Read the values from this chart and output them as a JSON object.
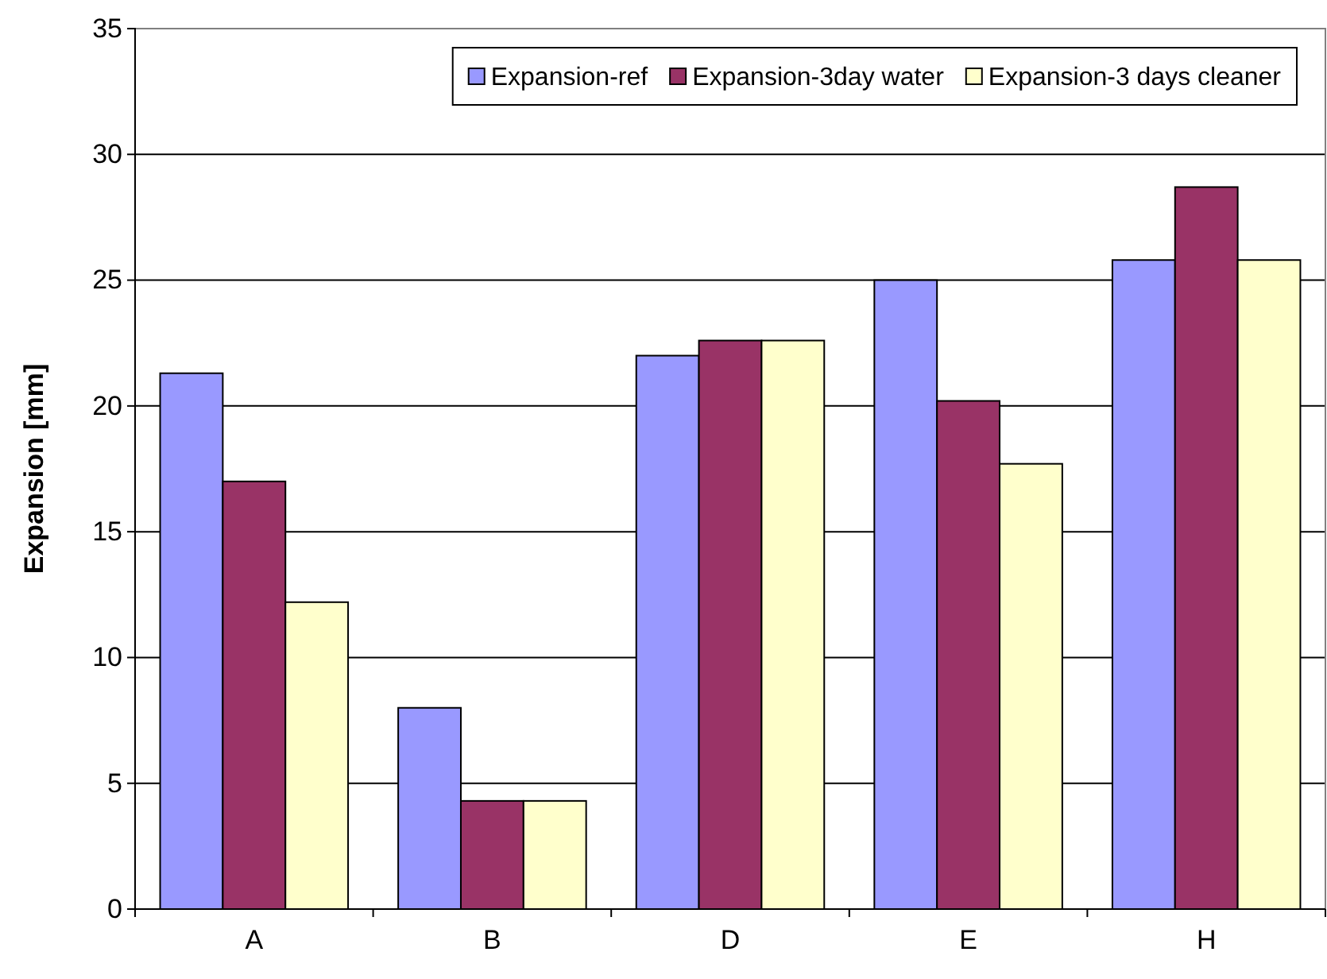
{
  "chart_data": {
    "type": "bar",
    "ylabel": "Expansion [mm]",
    "categories": [
      "A",
      "B",
      "D",
      "E",
      "H"
    ],
    "series": [
      {
        "name": "Expansion-ref",
        "color": "#9999ff",
        "values": [
          21.3,
          8.0,
          22.0,
          25.0,
          25.8
        ]
      },
      {
        "name": "Expansion-3day water",
        "color": "#993366",
        "values": [
          17.0,
          4.3,
          22.6,
          20.2,
          28.7
        ]
      },
      {
        "name": "Expansion-3 days cleaner",
        "color": "#ffffcc",
        "values": [
          12.2,
          4.3,
          22.6,
          17.7,
          25.8
        ]
      }
    ],
    "ylim": [
      0,
      35
    ],
    "yticks": [
      0,
      5,
      10,
      15,
      20,
      25,
      30,
      35
    ],
    "grid": "y",
    "legend": "top right"
  }
}
